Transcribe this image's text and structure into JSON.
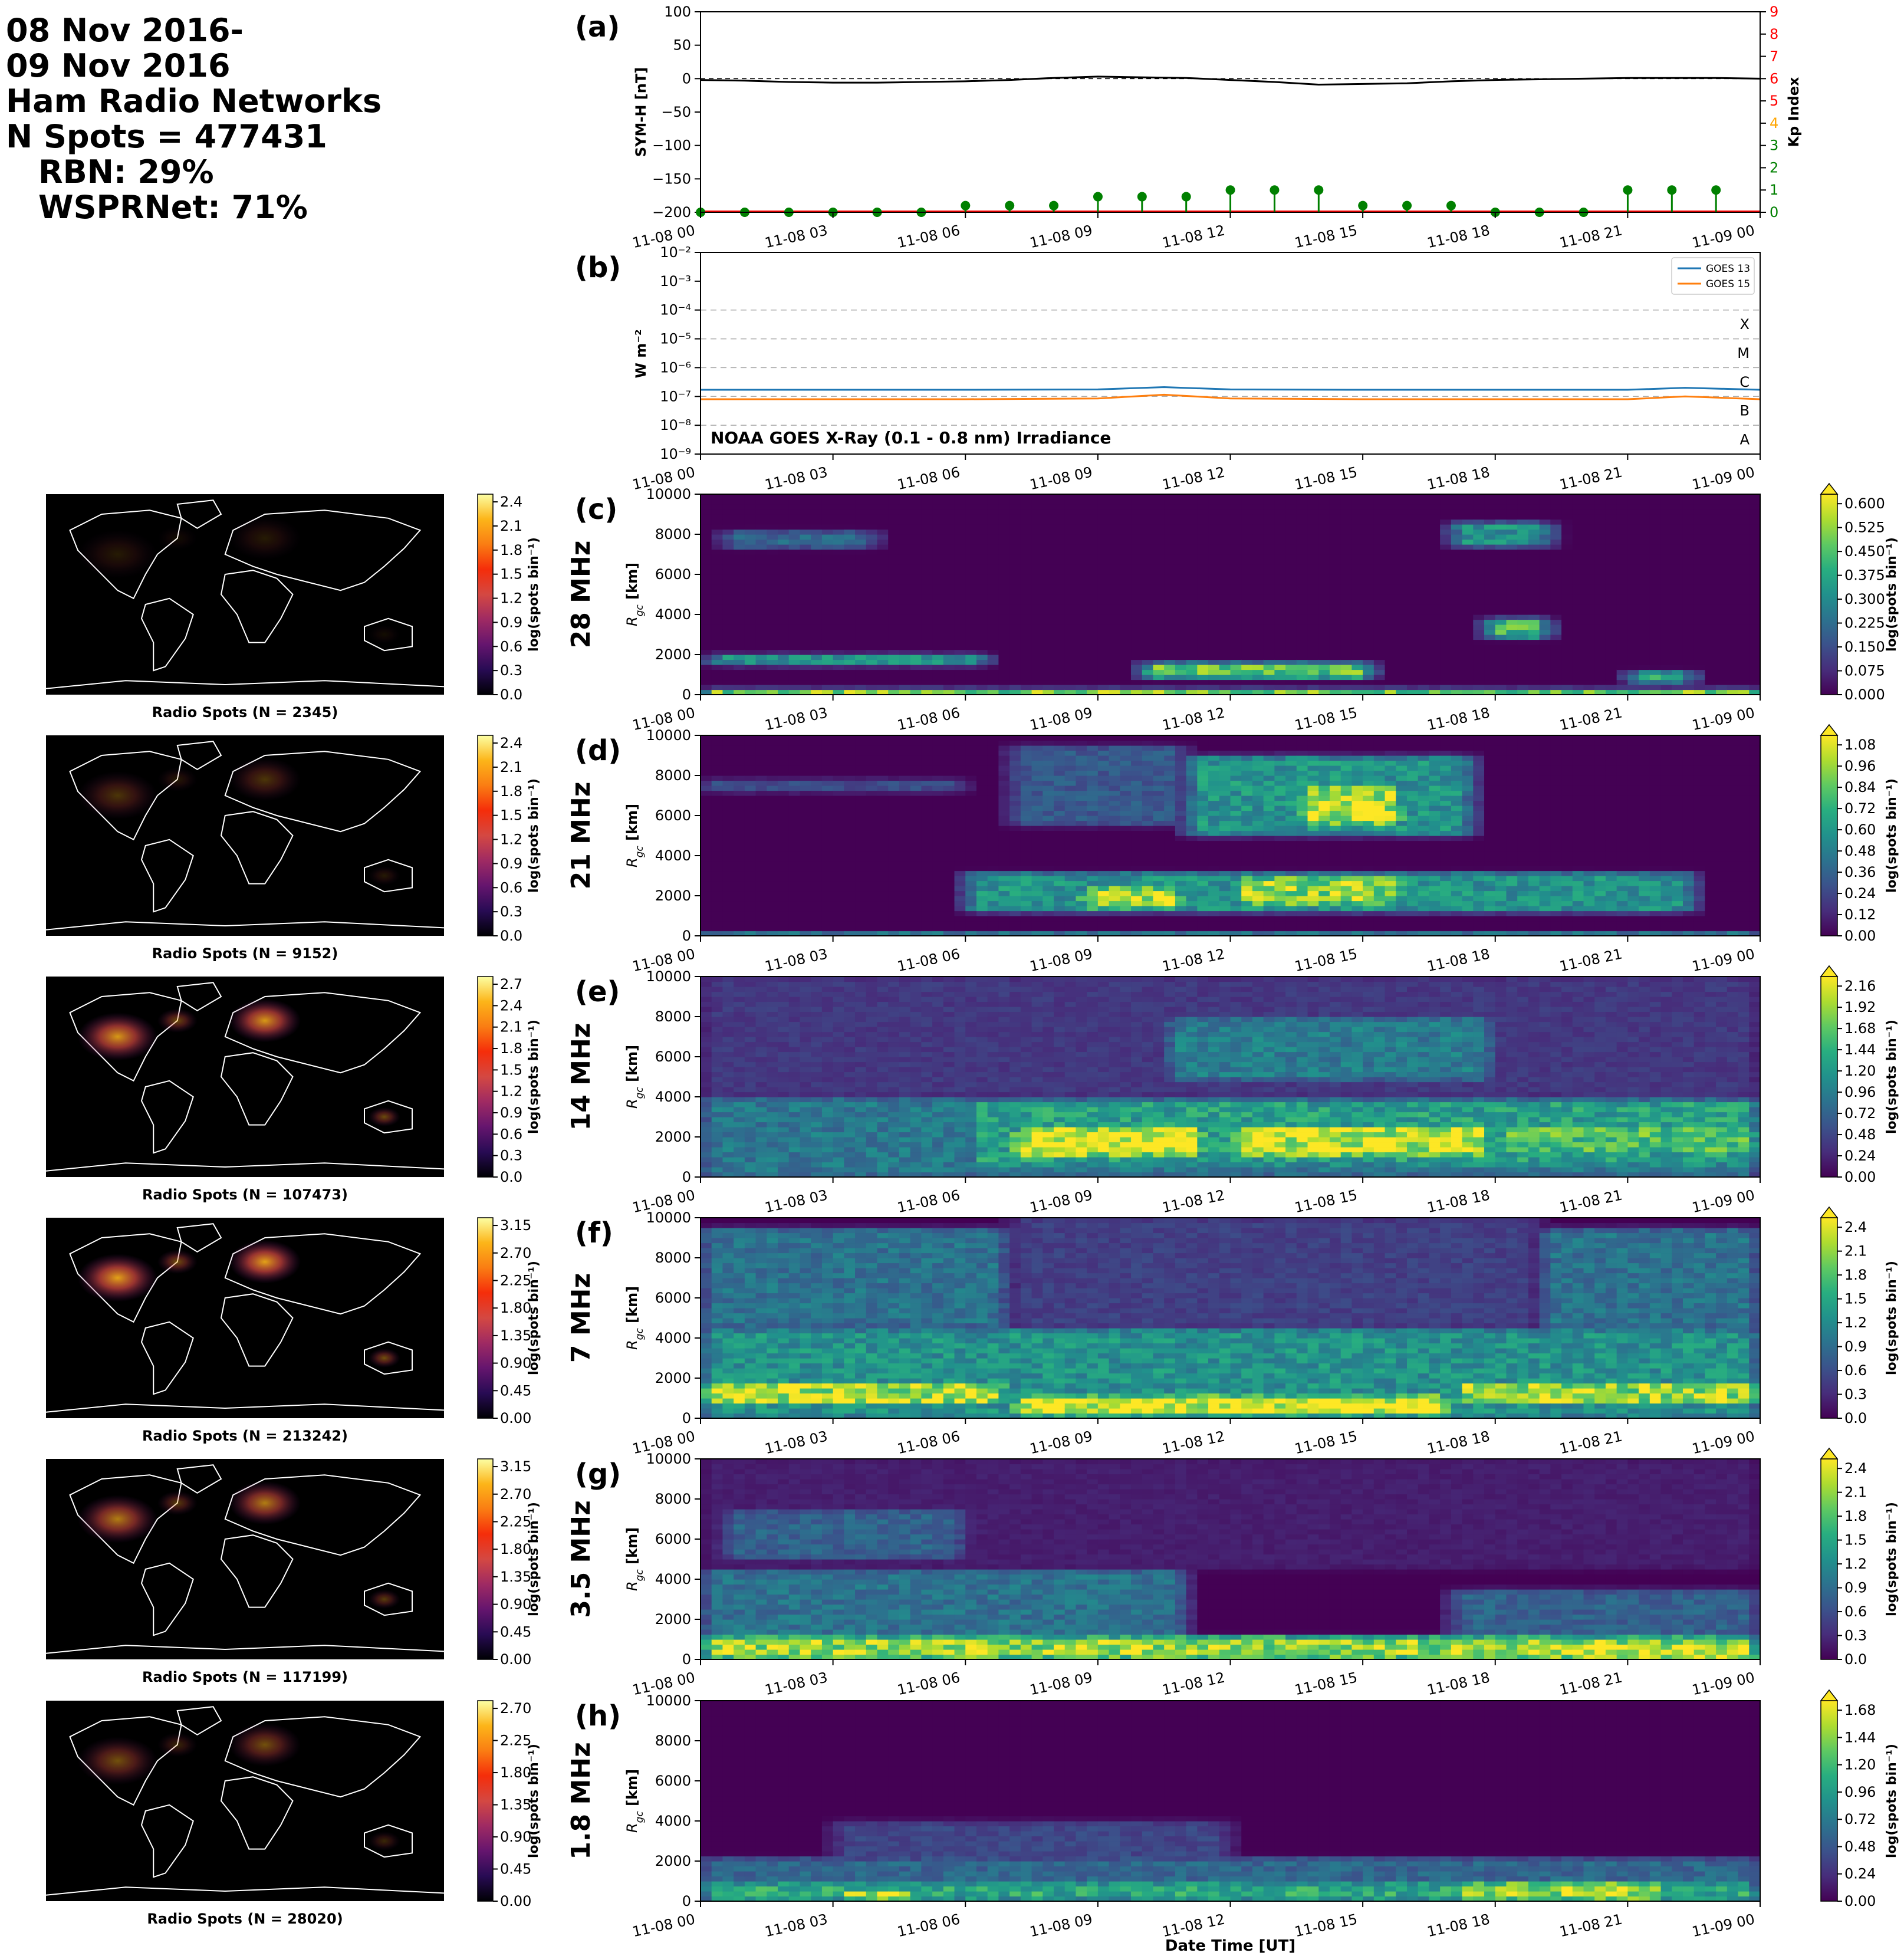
{
  "header": {
    "date_line1": "08 Nov 2016-",
    "date_line2": "09 Nov 2016",
    "source": "Ham Radio Networks",
    "n_spots": "N Spots = 477431",
    "rbn": "RBN: 29%",
    "wsprnet": "WSPRNet: 71%"
  },
  "colors": {
    "sym_h": "#000000",
    "kp_stem": "#008000",
    "kp_axis": "#ff0000",
    "goes13": "#1f77b4",
    "goes15": "#ff7f0e",
    "viridis": [
      "#440154",
      "#472d7b",
      "#3b528b",
      "#2c728e",
      "#21918c",
      "#28ae80",
      "#5ec962",
      "#addc30",
      "#fde725"
    ],
    "inferno": [
      "#000004",
      "#280b54",
      "#65156e",
      "#9f2a63",
      "#d44842",
      "#f52d0a",
      "#fa7d13",
      "#fcb519",
      "#fcffa4"
    ]
  },
  "time_ticks": [
    "11-08 00",
    "11-08 03",
    "11-08 06",
    "11-08 09",
    "11-08 12",
    "11-08 15",
    "11-08 18",
    "11-08 21",
    "11-09 00"
  ],
  "chart_data": [
    {
      "panel": "(a)",
      "type": "line",
      "ylabel": "SYM-H [nT]",
      "ylim": [
        -200,
        100
      ],
      "yticks": [
        "100",
        "50",
        "0",
        "−50",
        "−100",
        "−150",
        "−200"
      ],
      "y2label": "Kp Index",
      "y2lim": [
        0,
        9
      ],
      "y2ticks": [
        "0",
        "1",
        "2",
        "3",
        "4",
        "5",
        "6",
        "7",
        "8",
        "9"
      ],
      "sym_h": {
        "x_hours": [
          0,
          1,
          2,
          3,
          4,
          5,
          6,
          7,
          8,
          9,
          10,
          11,
          12,
          13,
          14,
          15,
          16,
          17,
          18,
          19,
          20,
          21,
          22,
          23,
          24
        ],
        "values": [
          -2,
          -3,
          -5,
          -6,
          -6,
          -5,
          -4,
          -2,
          1,
          3,
          2,
          1,
          -2,
          -5,
          -9,
          -8,
          -7,
          -4,
          -2,
          -1,
          0,
          1,
          1,
          1,
          0
        ]
      },
      "kp": {
        "x_hours": [
          0,
          1,
          2,
          3,
          4,
          5,
          6,
          7,
          8,
          9,
          10,
          11,
          12,
          13,
          14,
          15,
          16,
          17,
          18,
          19,
          20,
          21,
          22,
          23
        ],
        "values": [
          0,
          0,
          0,
          0,
          0,
          0,
          0.3,
          0.3,
          0.3,
          0.7,
          0.7,
          0.7,
          1,
          1,
          1,
          0.3,
          0.3,
          0.3,
          0,
          0,
          0,
          1,
          1,
          1
        ]
      }
    },
    {
      "panel": "(b)",
      "type": "line",
      "ylabel": "W m⁻²",
      "yscale": "log",
      "ylim": [
        1e-09,
        0.01
      ],
      "yticks": [
        "10⁻²",
        "10⁻³",
        "10⁻⁴",
        "10⁻⁵",
        "10⁻⁶",
        "10⁻⁷",
        "10⁻⁸",
        "10⁻⁹"
      ],
      "class_labels": [
        "X",
        "M",
        "C",
        "B",
        "A"
      ],
      "annotation": "NOAA GOES X-Ray (0.1 - 0.8 nm) Irradiance",
      "series": [
        {
          "name": "GOES 13",
          "x_hours": [
            0,
            3,
            6,
            9,
            10.5,
            12,
            15,
            18,
            21,
            22.3,
            24
          ],
          "values": [
            1.7e-07,
            1.7e-07,
            1.7e-07,
            1.75e-07,
            2.1e-07,
            1.75e-07,
            1.7e-07,
            1.7e-07,
            1.7e-07,
            2e-07,
            1.7e-07
          ]
        },
        {
          "name": "GOES 15",
          "x_hours": [
            0,
            3,
            6,
            9,
            10.5,
            12,
            15,
            18,
            21,
            22.3,
            24
          ],
          "values": [
            8e-08,
            8e-08,
            8e-08,
            8.5e-08,
            1.15e-07,
            8.5e-08,
            8e-08,
            8e-08,
            8e-08,
            1e-07,
            8e-08
          ]
        }
      ]
    },
    {
      "panel": "(c)",
      "band": "28 MHz",
      "type": "heatmap",
      "ylabel": "R_gc [km]",
      "ylim": [
        0,
        10000
      ],
      "yticks": [
        "0",
        "2000",
        "4000",
        "6000",
        "8000",
        "10000"
      ],
      "colorbar_label": "log(spots bin⁻¹)",
      "colorbar_ticks": [
        "0.000",
        "0.075",
        "0.150",
        "0.225",
        "0.300",
        "0.375",
        "0.450",
        "0.525",
        "0.600"
      ],
      "cmax": 0.6,
      "features": [
        {
          "t": [
            0,
            24
          ],
          "r": [
            0,
            250
          ],
          "v": 0.55
        },
        {
          "t": [
            0.2,
            6.5
          ],
          "r": [
            1500,
            2000
          ],
          "v": 0.35
        },
        {
          "t": [
            10,
            15.2
          ],
          "r": [
            800,
            1600
          ],
          "v": 0.45
        },
        {
          "t": [
            17.8,
            19.2
          ],
          "r": [
            2800,
            3800
          ],
          "v": 0.4
        },
        {
          "t": [
            21,
            22.5
          ],
          "r": [
            600,
            1200
          ],
          "v": 0.35
        },
        {
          "t": [
            17,
            19.3
          ],
          "r": [
            7400,
            8600
          ],
          "v": 0.3
        },
        {
          "t": [
            0.5,
            4
          ],
          "r": [
            7300,
            8200
          ],
          "v": 0.2
        }
      ],
      "map": {
        "caption": "Radio Spots (N = 2345)",
        "cbar_ticks": [
          "0.0",
          "0.3",
          "0.6",
          "0.9",
          "1.2",
          "1.5",
          "1.8",
          "2.1",
          "2.4"
        ]
      }
    },
    {
      "panel": "(d)",
      "band": "21 MHz",
      "type": "heatmap",
      "ylabel": "R_gc [km]",
      "ylim": [
        0,
        10000
      ],
      "yticks": [
        "0",
        "2000",
        "4000",
        "6000",
        "8000",
        "10000"
      ],
      "colorbar_label": "log(spots bin⁻¹)",
      "colorbar_ticks": [
        "0.00",
        "0.12",
        "0.24",
        "0.36",
        "0.48",
        "0.60",
        "0.72",
        "0.84",
        "0.96",
        "1.08"
      ],
      "cmax": 1.08,
      "features": [
        {
          "t": [
            0,
            24
          ],
          "r": [
            0,
            150
          ],
          "v": 0.7
        },
        {
          "t": [
            6,
            22.5
          ],
          "r": [
            1200,
            3200
          ],
          "v": 0.55
        },
        {
          "t": [
            8.5,
            11
          ],
          "r": [
            1300,
            2500
          ],
          "v": 0.95
        },
        {
          "t": [
            12,
            16
          ],
          "r": [
            1500,
            3000
          ],
          "v": 0.9
        },
        {
          "t": [
            11,
            17.5
          ],
          "r": [
            5000,
            9000
          ],
          "v": 0.55
        },
        {
          "t": [
            13.5,
            16
          ],
          "r": [
            5500,
            7500
          ],
          "v": 0.95
        },
        {
          "t": [
            7,
            11
          ],
          "r": [
            5500,
            9500
          ],
          "v": 0.3
        },
        {
          "t": [
            0,
            6
          ],
          "r": [
            7200,
            7800
          ],
          "v": 0.25
        }
      ],
      "map": {
        "caption": "Radio Spots (N = 9152)",
        "cbar_ticks": [
          "0.0",
          "0.3",
          "0.6",
          "0.9",
          "1.2",
          "1.5",
          "1.8",
          "2.1",
          "2.4"
        ]
      }
    },
    {
      "panel": "(e)",
      "band": "14 MHz",
      "type": "heatmap",
      "ylabel": "R_gc [km]",
      "ylim": [
        0,
        10000
      ],
      "yticks": [
        "0",
        "2000",
        "4000",
        "6000",
        "8000",
        "10000"
      ],
      "colorbar_label": "log(spots bin⁻¹)",
      "colorbar_ticks": [
        "0.00",
        "0.24",
        "0.48",
        "0.72",
        "0.96",
        "1.20",
        "1.44",
        "1.68",
        "1.92",
        "2.16"
      ],
      "cmax": 2.16,
      "features": [
        {
          "t": [
            0,
            24
          ],
          "r": [
            0,
            4000
          ],
          "v": 0.85
        },
        {
          "t": [
            0,
            6
          ],
          "r": [
            500,
            4000
          ],
          "v": 0.6
        },
        {
          "t": [
            6,
            24
          ],
          "r": [
            500,
            3800
          ],
          "v": 1.2
        },
        {
          "t": [
            7,
            11.5
          ],
          "r": [
            1000,
            2500
          ],
          "v": 2.1
        },
        {
          "t": [
            12,
            18
          ],
          "r": [
            1000,
            2600
          ],
          "v": 2.0
        },
        {
          "t": [
            18,
            24
          ],
          "r": [
            1200,
            2600
          ],
          "v": 1.5
        },
        {
          "t": [
            10.5,
            18
          ],
          "r": [
            4800,
            8000
          ],
          "v": 0.9
        },
        {
          "t": [
            0,
            24
          ],
          "r": [
            4000,
            10000
          ],
          "v": 0.35
        }
      ],
      "map": {
        "caption": "Radio Spots (N = 107473)",
        "cbar_ticks": [
          "0.0",
          "0.3",
          "0.6",
          "0.9",
          "1.2",
          "1.5",
          "1.8",
          "2.1",
          "2.4",
          "2.7"
        ]
      }
    },
    {
      "panel": "(f)",
      "band": "7 MHz",
      "type": "heatmap",
      "ylabel": "R_gc [km]",
      "ylim": [
        0,
        10000
      ],
      "yticks": [
        "0",
        "2000",
        "4000",
        "6000",
        "8000",
        "10000"
      ],
      "colorbar_label": "log(spots bin⁻¹)",
      "colorbar_ticks": [
        "0.0",
        "0.3",
        "0.6",
        "0.9",
        "1.2",
        "1.5",
        "1.8",
        "2.1",
        "2.4"
      ],
      "cmax": 2.4,
      "features": [
        {
          "t": [
            0,
            24
          ],
          "r": [
            0,
            4500
          ],
          "v": 1.2
        },
        {
          "t": [
            0,
            7
          ],
          "r": [
            4500,
            9500
          ],
          "v": 0.9
        },
        {
          "t": [
            19,
            24
          ],
          "r": [
            4500,
            9500
          ],
          "v": 0.9
        },
        {
          "t": [
            7,
            19
          ],
          "r": [
            4500,
            10000
          ],
          "v": 0.45
        },
        {
          "t": [
            0,
            7
          ],
          "r": [
            600,
            1800
          ],
          "v": 2.1
        },
        {
          "t": [
            7,
            17
          ],
          "r": [
            100,
            1200
          ],
          "v": 2.35
        },
        {
          "t": [
            17,
            24
          ],
          "r": [
            600,
            1800
          ],
          "v": 2.0
        }
      ],
      "map": {
        "caption": "Radio Spots (N = 213242)",
        "cbar_ticks": [
          "0.00",
          "0.45",
          "0.90",
          "1.35",
          "1.80",
          "2.25",
          "2.70",
          "3.15"
        ]
      }
    },
    {
      "panel": "(g)",
      "band": "3.5 MHz",
      "type": "heatmap",
      "ylabel": "R_gc [km]",
      "ylim": [
        0,
        10000
      ],
      "yticks": [
        "0",
        "2000",
        "4000",
        "6000",
        "8000",
        "10000"
      ],
      "colorbar_label": "log(spots bin⁻¹)",
      "colorbar_ticks": [
        "0.0",
        "0.3",
        "0.6",
        "0.9",
        "1.2",
        "1.5",
        "1.8",
        "2.1",
        "2.4"
      ],
      "cmax": 2.4,
      "features": [
        {
          "t": [
            0,
            24
          ],
          "r": [
            0,
            1200
          ],
          "v": 2.0
        },
        {
          "t": [
            0,
            11
          ],
          "r": [
            1200,
            4500
          ],
          "v": 0.9
        },
        {
          "t": [
            17,
            24
          ],
          "r": [
            1200,
            3500
          ],
          "v": 0.75
        },
        {
          "t": [
            0.5,
            6
          ],
          "r": [
            5000,
            7500
          ],
          "v": 0.75
        },
        {
          "t": [
            19,
            24
          ],
          "r": [
            0,
            900
          ],
          "v": 2.3
        },
        {
          "t": [
            0,
            24
          ],
          "r": [
            4500,
            10000
          ],
          "v": 0.2
        }
      ],
      "map": {
        "caption": "Radio Spots (N = 117199)",
        "cbar_ticks": [
          "0.00",
          "0.45",
          "0.90",
          "1.35",
          "1.80",
          "2.25",
          "2.70",
          "3.15"
        ]
      }
    },
    {
      "panel": "(h)",
      "band": "1.8 MHz",
      "type": "heatmap",
      "ylabel": "R_gc [km]",
      "ylim": [
        0,
        10000
      ],
      "yticks": [
        "0",
        "2000",
        "4000",
        "6000",
        "8000",
        "10000"
      ],
      "colorbar_label": "log(spots bin⁻¹)",
      "colorbar_ticks": [
        "0.00",
        "0.24",
        "0.48",
        "0.72",
        "0.96",
        "1.20",
        "1.44",
        "1.68"
      ],
      "cmax": 1.68,
      "features": [
        {
          "t": [
            0,
            24
          ],
          "r": [
            0,
            2200
          ],
          "v": 0.55
        },
        {
          "t": [
            0,
            24
          ],
          "r": [
            0,
            1000
          ],
          "v": 1.0
        },
        {
          "t": [
            3,
            5
          ],
          "r": [
            0,
            700
          ],
          "v": 1.45
        },
        {
          "t": [
            17,
            22
          ],
          "r": [
            0,
            1000
          ],
          "v": 1.4
        },
        {
          "t": [
            3,
            12
          ],
          "r": [
            2200,
            4000
          ],
          "v": 0.35
        }
      ],
      "map": {
        "caption": "Radio Spots (N = 28020)",
        "cbar_ticks": [
          "0.00",
          "0.45",
          "0.90",
          "1.35",
          "1.80",
          "2.25",
          "2.70"
        ]
      }
    }
  ],
  "xlabel": "Date Time [UT]"
}
